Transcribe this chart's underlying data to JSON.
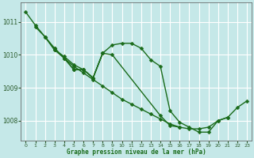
{
  "title": "Graphe pression niveau de la mer (hPa)",
  "background_color": "#c5e8e8",
  "grid_color": "#ffffff",
  "line_color": "#1a6b1a",
  "xlim": [
    -0.5,
    23.5
  ],
  "ylim": [
    1007.4,
    1011.6
  ],
  "yticks": [
    1008,
    1009,
    1010,
    1011
  ],
  "xticks": [
    0,
    1,
    2,
    3,
    4,
    5,
    6,
    7,
    8,
    9,
    10,
    11,
    12,
    13,
    14,
    15,
    16,
    17,
    18,
    19,
    20,
    21,
    22,
    23
  ],
  "series": [
    {
      "x": [
        0,
        1,
        2,
        3,
        4,
        5,
        6,
        7,
        8,
        9,
        10,
        11,
        12,
        13,
        14,
        15,
        16,
        17,
        18,
        19,
        20,
        21,
        22,
        23
      ],
      "y": [
        1011.3,
        1010.9,
        1010.55,
        1010.2,
        1009.9,
        1009.65,
        1009.45,
        1009.25,
        1009.05,
        1008.85,
        1008.65,
        1008.5,
        1008.35,
        1008.2,
        1008.05,
        1007.9,
        1007.8,
        1007.75,
        1007.75,
        1007.8,
        1008.0,
        1008.1,
        1008.4,
        1008.6
      ]
    },
    {
      "x": [
        1,
        2,
        3,
        4,
        5,
        6,
        7,
        8,
        9,
        10,
        11,
        12,
        13,
        14,
        15,
        16,
        17,
        18,
        19,
        20,
        21
      ],
      "y": [
        1010.85,
        1010.55,
        1010.15,
        1009.95,
        1009.7,
        1009.55,
        1009.3,
        1010.05,
        1010.3,
        1010.35,
        1010.35,
        1010.2,
        1009.85,
        1009.65,
        1008.3,
        1007.95,
        1007.8,
        1007.65,
        1007.65,
        1008.0,
        1008.1
      ]
    },
    {
      "x": [
        2,
        3,
        4,
        5,
        6,
        7,
        8,
        9,
        14,
        15,
        16
      ],
      "y": [
        1010.55,
        1010.15,
        1009.9,
        1009.55,
        1009.55,
        1009.3,
        1010.05,
        1010.0,
        1008.15,
        1007.85,
        1007.8
      ]
    },
    {
      "x": [
        3,
        4,
        5,
        6,
        7,
        8
      ],
      "y": [
        1010.2,
        1009.9,
        1009.55,
        1009.55,
        1009.3,
        1010.05
      ]
    }
  ],
  "marker_size": 2.5,
  "line_width": 1.0
}
